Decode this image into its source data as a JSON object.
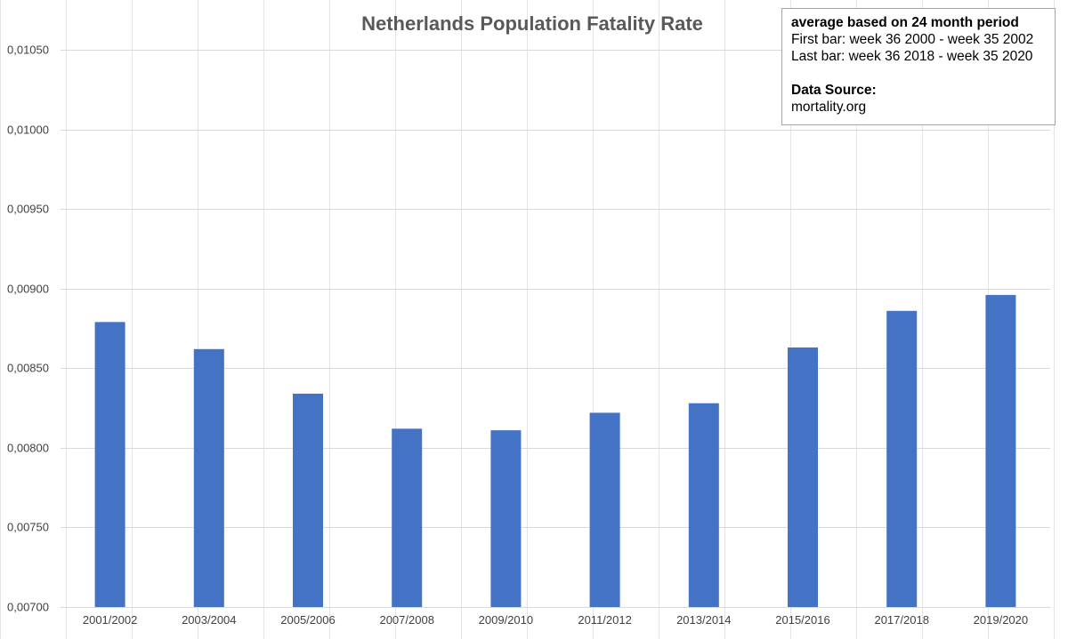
{
  "chart_data": {
    "type": "bar",
    "title": "Netherlands Population Fatality Rate",
    "categories": [
      "2001/2002",
      "2003/2004",
      "2005/2006",
      "2007/2008",
      "2009/2010",
      "2011/2012",
      "2013/2014",
      "2015/2016",
      "2017/2018",
      "2019/2020"
    ],
    "values": [
      0.00879,
      0.00862,
      0.00834,
      0.00812,
      0.00811,
      0.00822,
      0.00828,
      0.00863,
      0.00886,
      0.00896
    ],
    "ylim": [
      0.007,
      0.0105
    ],
    "yticks": [
      "0,00700",
      "0,00750",
      "0,00800",
      "0,00850",
      "0,00900",
      "0,00950",
      "0,01000",
      "0,01050"
    ],
    "bar_color": "#4472c4",
    "grid": true,
    "legend": "none"
  },
  "annotation": {
    "heading": "average based on 24 month period",
    "line1": "First bar: week 36 2000  - week 35 2002",
    "line2": "Last bar: week 36 2018  - week 35 2020",
    "source_label": "Data Source:",
    "source_value": "mortality.org"
  }
}
